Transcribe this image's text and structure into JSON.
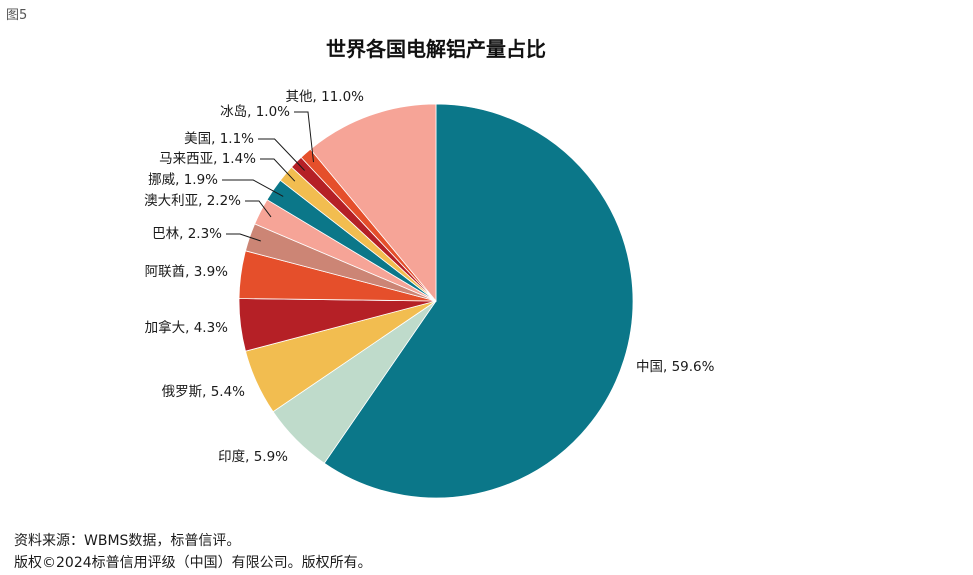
{
  "figure_label": "图5",
  "footnotes": {
    "source": "资料来源：WBMS数据，标普信评。",
    "copyright": "版权©2024标普信用评级（中国）有限公司。版权所有。"
  },
  "chart_data": {
    "type": "pie",
    "title": "世界各国电解铝产量占比",
    "unit": "%",
    "slices": [
      {
        "name": "中国",
        "value": 59.6,
        "label": "中国, 59.6%",
        "color": "#0b7789"
      },
      {
        "name": "印度",
        "value": 5.9,
        "label": "印度, 5.9%",
        "color": "#bfdbcb"
      },
      {
        "name": "俄罗斯",
        "value": 5.4,
        "label": "俄罗斯, 5.4%",
        "color": "#f2bd50"
      },
      {
        "name": "加拿大",
        "value": 4.3,
        "label": "加拿大, 4.3%",
        "color": "#b52026"
      },
      {
        "name": "阿联酋",
        "value": 3.9,
        "label": "阿联酋, 3.9%",
        "color": "#e54f2b"
      },
      {
        "name": "巴林",
        "value": 2.3,
        "label": "巴林, 2.3%",
        "color": "#cc8575"
      },
      {
        "name": "澳大利亚",
        "value": 2.2,
        "label": "澳大利亚, 2.2%",
        "color": "#f6a497"
      },
      {
        "name": "挪威",
        "value": 1.9,
        "label": "挪威, 1.9%",
        "color": "#0b7789"
      },
      {
        "name": "马来西亚",
        "value": 1.4,
        "label": "马来西亚, 1.4%",
        "color": "#f2bd50"
      },
      {
        "name": "美国",
        "value": 1.1,
        "label": "美国, 1.1%",
        "color": "#b52026"
      },
      {
        "name": "冰岛",
        "value": 1.0,
        "label": "冰岛, 1.0%",
        "color": "#e54f2b"
      },
      {
        "name": "其他",
        "value": 11.0,
        "label": "其他, 11.0%",
        "color": "#f6a497"
      }
    ]
  }
}
